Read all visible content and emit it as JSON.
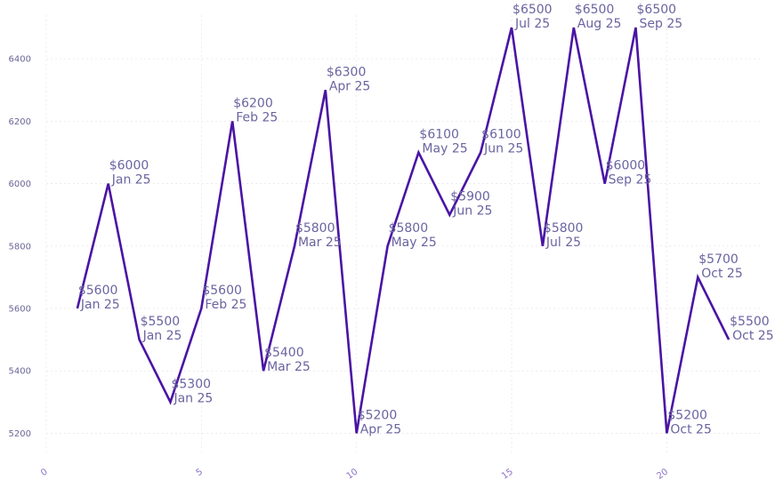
{
  "chart_data": {
    "type": "line",
    "title": "",
    "xlabel": "",
    "ylabel": "",
    "xlim": [
      0,
      23
    ],
    "ylim": [
      5130,
      6540
    ],
    "x_ticks": [
      0,
      5,
      10,
      15,
      20
    ],
    "y_ticks": [
      5200,
      5400,
      5600,
      5800,
      6000,
      6200,
      6400
    ],
    "grid": true,
    "line_color": "#4a14a4",
    "label_color": "#6a64a0",
    "series": [
      {
        "x": [
          1,
          2,
          3,
          4,
          5,
          6,
          7,
          8,
          9,
          10,
          11,
          12,
          13,
          14,
          15,
          16,
          17,
          18,
          19,
          20,
          21,
          22
        ],
        "values": [
          5600,
          6000,
          5500,
          5300,
          5600,
          6200,
          5400,
          5800,
          6300,
          5200,
          5800,
          6100,
          5900,
          6100,
          6500,
          5800,
          6500,
          6000,
          6500,
          5200,
          5700,
          5500
        ],
        "labels": [
          {
            "value": "$5600",
            "date": "Jan 25"
          },
          {
            "value": "$6000",
            "date": "Jan 25"
          },
          {
            "value": "$5500",
            "date": "Jan 25"
          },
          {
            "value": "$5300",
            "date": "Jan 25"
          },
          {
            "value": "$5600",
            "date": "Feb 25"
          },
          {
            "value": "$6200",
            "date": "Feb 25"
          },
          {
            "value": "$5400",
            "date": "Mar 25"
          },
          {
            "value": "$5800",
            "date": "Mar 25"
          },
          {
            "value": "$6300",
            "date": "Apr 25"
          },
          {
            "value": "$5200",
            "date": "Apr 25"
          },
          {
            "value": "$5800",
            "date": "May 25"
          },
          {
            "value": "$6100",
            "date": "May 25"
          },
          {
            "value": "$5900",
            "date": "Jun 25"
          },
          {
            "value": "$6100",
            "date": "Jun 25"
          },
          {
            "value": "$6500",
            "date": "Jul 25"
          },
          {
            "value": "$5800",
            "date": "Jul 25"
          },
          {
            "value": "$6500",
            "date": "Aug 25"
          },
          {
            "value": "$6000",
            "date": "Sep 25"
          },
          {
            "value": "$6500",
            "date": "Sep 25"
          },
          {
            "value": "$5200",
            "date": "Oct 25"
          },
          {
            "value": "$5700",
            "date": "Oct 25"
          },
          {
            "value": "$5500",
            "date": "Oct 25"
          }
        ]
      }
    ]
  }
}
